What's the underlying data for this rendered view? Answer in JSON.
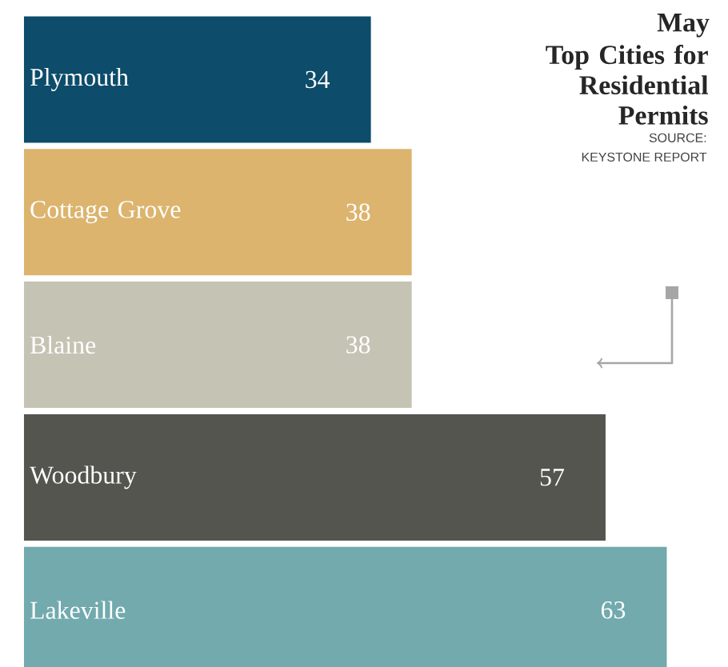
{
  "chart_data": {
    "type": "bar",
    "orientation": "horizontal",
    "title": "May",
    "subtitle": "Top Cities for Residential Permits",
    "annotations": [
      "SOURCE:",
      "KEYSTONE REPORT"
    ],
    "categories": [
      "Plymouth",
      "Cottage Grove",
      "Blaine",
      "Woodbury",
      "Lakeville"
    ],
    "values": [
      34,
      38,
      38,
      57,
      63
    ],
    "colors": [
      "#0d4c6a",
      "#dcb46e",
      "#c5c3b3",
      "#555550",
      "#72aaae"
    ],
    "data_labels": true
  }
}
